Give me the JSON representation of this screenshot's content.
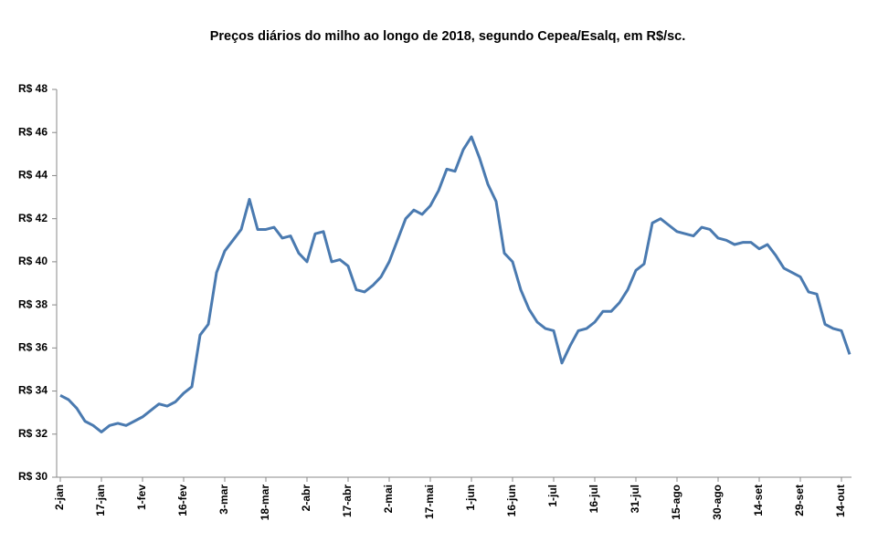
{
  "chart_data": {
    "type": "line",
    "title": "Preços diários do milho ao longo de 2018, segundo Cepea/Esalq, em R$/sc.",
    "categories": [
      "2-jan",
      null,
      null,
      null,
      null,
      "17-jan",
      null,
      null,
      null,
      null,
      "1-fev",
      null,
      null,
      null,
      null,
      "16-fev",
      null,
      null,
      null,
      null,
      "3-mar",
      null,
      null,
      null,
      null,
      "18-mar",
      null,
      null,
      null,
      null,
      "2-abr",
      null,
      null,
      null,
      null,
      "17-abr",
      null,
      null,
      null,
      null,
      "2-mai",
      null,
      null,
      null,
      null,
      "17-mai",
      null,
      null,
      null,
      null,
      "1-jun",
      null,
      null,
      null,
      null,
      "16-jun",
      null,
      null,
      null,
      null,
      "1-jul",
      null,
      null,
      null,
      null,
      "16-jul",
      null,
      null,
      null,
      null,
      "31-jul",
      null,
      null,
      null,
      null,
      "15-ago",
      null,
      null,
      null,
      null,
      "30-ago",
      null,
      null,
      null,
      null,
      "14-set",
      null,
      null,
      null,
      null,
      "29-set",
      null,
      null,
      null,
      null,
      "14-out",
      null
    ],
    "series": [
      {
        "color": "#4a7ab0",
        "values": [
          33.8,
          33.6,
          33.2,
          32.6,
          32.4,
          32.1,
          32.4,
          32.5,
          32.4,
          32.6,
          32.8,
          33.1,
          33.4,
          33.3,
          33.5,
          33.9,
          34.2,
          36.6,
          37.1,
          39.5,
          40.5,
          41.0,
          41.5,
          42.9,
          41.5,
          41.5,
          41.6,
          41.1,
          41.2,
          40.4,
          40.0,
          41.3,
          41.4,
          40.0,
          40.1,
          39.8,
          38.7,
          38.6,
          38.9,
          39.3,
          40.0,
          41.0,
          42.0,
          42.4,
          42.2,
          42.6,
          43.3,
          44.3,
          44.2,
          45.2,
          45.8,
          44.8,
          43.6,
          42.8,
          40.4,
          40.0,
          38.7,
          37.8,
          37.2,
          36.9,
          36.8,
          35.3,
          36.1,
          36.8,
          36.9,
          37.2,
          37.7,
          37.7,
          38.1,
          38.7,
          39.6,
          39.9,
          41.8,
          42.0,
          41.7,
          41.4,
          41.3,
          41.2,
          41.6,
          41.5,
          41.1,
          41.0,
          40.8,
          40.9,
          40.9,
          40.6,
          40.8,
          40.3,
          39.7,
          39.5,
          39.3,
          38.6,
          38.5,
          37.1,
          36.9,
          36.8,
          35.7
        ]
      }
    ],
    "ylim": [
      30,
      48
    ],
    "yticks": [
      {
        "value": 30,
        "label": "R$ 30"
      },
      {
        "value": 32,
        "label": "R$ 32"
      },
      {
        "value": 34,
        "label": "R$ 34"
      },
      {
        "value": 36,
        "label": "R$ 36"
      },
      {
        "value": 38,
        "label": "R$ 38"
      },
      {
        "value": 40,
        "label": "R$ 40"
      },
      {
        "value": 42,
        "label": "R$ 42"
      },
      {
        "value": 44,
        "label": "R$ 44"
      },
      {
        "value": 46,
        "label": "R$ 46"
      },
      {
        "value": 48,
        "label": "R$ 48"
      }
    ],
    "grid": false
  }
}
